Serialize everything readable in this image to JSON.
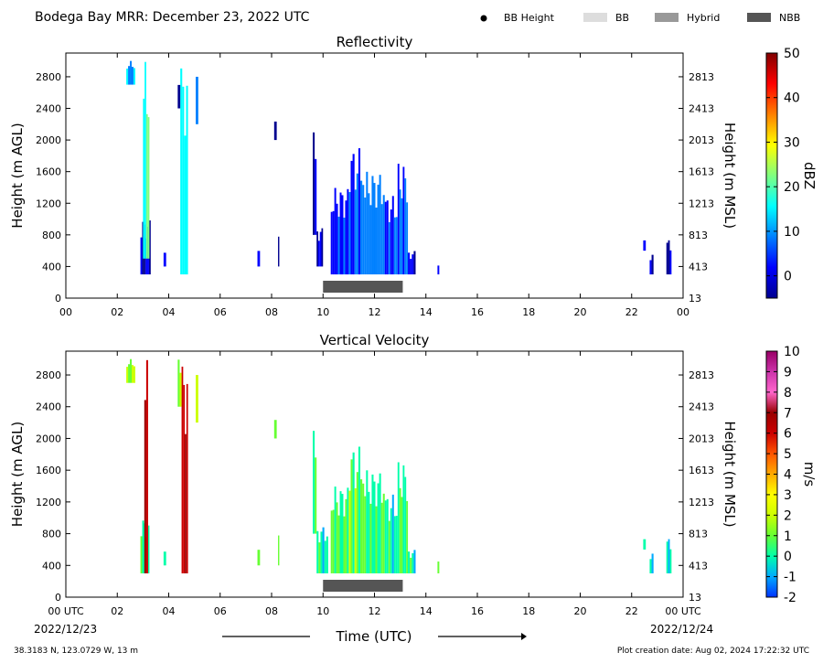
{
  "header": {
    "title": "Bodega Bay MRR:  December 23, 2022 UTC",
    "legend": [
      {
        "label": "BB Height",
        "kind": "dot",
        "color": "#000000"
      },
      {
        "label": "BB",
        "kind": "box",
        "color": "#dddddd"
      },
      {
        "label": "Hybrid",
        "kind": "box",
        "color": "#999999"
      },
      {
        "label": "NBB",
        "kind": "box",
        "color": "#555555"
      }
    ]
  },
  "footer": {
    "location": "38.3183 N, 123.0729 W, 13 m",
    "creation": "Plot creation date: Aug 02, 2024 17:22:32 UTC",
    "xlabel": "Time (UTC)",
    "date_start": "2022/12/23",
    "date_end": "2022/12/24"
  },
  "chart_data": [
    {
      "type": "heatmap",
      "title": "Reflectivity",
      "ylabel": "Height (m AGL)",
      "ylabel_right": "Height (m MSL)",
      "xlim": [
        0,
        24
      ],
      "ylim": [
        0,
        3100
      ],
      "x_ticks": [
        "00",
        "02",
        "04",
        "06",
        "08",
        "10",
        "12",
        "14",
        "16",
        "18",
        "20",
        "22",
        "00"
      ],
      "y_ticks": [
        0,
        400,
        800,
        1200,
        1600,
        2000,
        2400,
        2800
      ],
      "y_ticks_right": [
        13,
        413,
        813,
        1213,
        1613,
        2013,
        2413,
        2813
      ],
      "colorbar": {
        "label": "dBZ",
        "min": -5,
        "max": 50,
        "ticks": [
          0,
          10,
          20,
          30,
          40,
          50
        ],
        "colors": [
          "#00008f",
          "#0000ff",
          "#0080ff",
          "#00ffff",
          "#80ff80",
          "#ffff00",
          "#ff8000",
          "#ff0000",
          "#800000"
        ]
      },
      "nbb_bar": {
        "start": 10.0,
        "end": 13.1,
        "color": "#555555"
      },
      "precip_segments": [
        {
          "t0": 2.35,
          "t1": 2.7,
          "z0": 2700,
          "z1": 3000,
          "v": 12
        },
        {
          "t0": 2.9,
          "t1": 3.3,
          "z0": 300,
          "z1": 1000,
          "v": 2
        },
        {
          "t0": 3.0,
          "t1": 3.25,
          "z0": 500,
          "z1": 3000,
          "v": 18
        },
        {
          "t0": 4.45,
          "t1": 4.75,
          "z0": 300,
          "z1": 3000,
          "v": 16
        },
        {
          "t0": 4.35,
          "t1": 4.45,
          "z0": 2400,
          "z1": 2700,
          "v": 0
        },
        {
          "t0": 5.05,
          "t1": 5.15,
          "z0": 2200,
          "z1": 2900,
          "v": 10
        },
        {
          "t0": 3.8,
          "t1": 3.9,
          "z0": 400,
          "z1": 650,
          "v": 2
        },
        {
          "t0": 7.45,
          "t1": 7.55,
          "z0": 400,
          "z1": 700,
          "v": 0
        },
        {
          "t0": 8.1,
          "t1": 8.2,
          "z0": 2000,
          "z1": 2300,
          "v": 0
        },
        {
          "t0": 8.25,
          "t1": 8.3,
          "z0": 400,
          "z1": 800,
          "v": 0
        },
        {
          "t0": 9.6,
          "t1": 9.75,
          "z0": 800,
          "z1": 2100,
          "v": 0
        },
        {
          "t0": 9.75,
          "t1": 10.0,
          "z0": 400,
          "z1": 900,
          "v": 2
        },
        {
          "t0": 10.3,
          "t1": 11.0,
          "z0": 300,
          "z1": 1400,
          "v": 5
        },
        {
          "t0": 11.0,
          "t1": 11.6,
          "z0": 300,
          "z1": 1900,
          "v": 8
        },
        {
          "t0": 11.6,
          "t1": 12.4,
          "z0": 300,
          "z1": 1600,
          "v": 10
        },
        {
          "t0": 12.4,
          "t1": 12.9,
          "z0": 300,
          "z1": 1300,
          "v": 6
        },
        {
          "t0": 12.9,
          "t1": 13.3,
          "z0": 300,
          "z1": 1700,
          "v": 9
        },
        {
          "t0": 13.3,
          "t1": 13.6,
          "z0": 300,
          "z1": 600,
          "v": 3
        },
        {
          "t0": 14.45,
          "t1": 14.52,
          "z0": 300,
          "z1": 450,
          "v": 2
        },
        {
          "t0": 22.45,
          "t1": 22.55,
          "z0": 600,
          "z1": 800,
          "v": 0
        },
        {
          "t0": 22.7,
          "t1": 22.85,
          "z0": 300,
          "z1": 550,
          "v": 2
        },
        {
          "t0": 23.35,
          "t1": 23.55,
          "z0": 300,
          "z1": 750,
          "v": 1
        }
      ]
    },
    {
      "type": "heatmap",
      "title": "Vertical Velocity",
      "ylabel": "Height (m AGL)",
      "ylabel_right": "Height (m MSL)",
      "xlim": [
        0,
        24
      ],
      "ylim": [
        0,
        3100
      ],
      "x_ticks": [
        "00 UTC",
        "02",
        "04",
        "06",
        "08",
        "10",
        "12",
        "14",
        "16",
        "18",
        "20",
        "22",
        "00 UTC"
      ],
      "y_ticks": [
        0,
        400,
        800,
        1200,
        1600,
        2000,
        2400,
        2800
      ],
      "y_ticks_right": [
        13,
        413,
        813,
        1213,
        1613,
        2013,
        2413,
        2813
      ],
      "colorbar": {
        "label": "m/s",
        "min": -2,
        "max": 10,
        "ticks": [
          -2,
          -1,
          0,
          1,
          2,
          3,
          4,
          5,
          6,
          7,
          8,
          9,
          10
        ],
        "colors": [
          "#0033ff",
          "#00aaff",
          "#00ffaa",
          "#66ff33",
          "#ccff00",
          "#ffff00",
          "#ffaa00",
          "#ff5500",
          "#cc0000",
          "#990000",
          "#ff66cc",
          "#cc33aa",
          "#990066"
        ]
      },
      "nbb_bar": {
        "start": 10.0,
        "end": 13.1,
        "color": "#555555"
      },
      "precip_segments": [
        {
          "t0": 2.35,
          "t1": 2.7,
          "z0": 2700,
          "z1": 3000,
          "v": 1.5
        },
        {
          "t0": 2.9,
          "t1": 3.25,
          "z0": 300,
          "z1": 1000,
          "v": 0.5
        },
        {
          "t0": 3.05,
          "t1": 3.2,
          "z0": 300,
          "z1": 3000,
          "v": 6.5
        },
        {
          "t0": 4.5,
          "t1": 4.75,
          "z0": 300,
          "z1": 3000,
          "v": 6.0
        },
        {
          "t0": 4.35,
          "t1": 4.5,
          "z0": 2400,
          "z1": 3000,
          "v": 2.0
        },
        {
          "t0": 5.05,
          "t1": 5.15,
          "z0": 2200,
          "z1": 2900,
          "v": 2.0
        },
        {
          "t0": 3.8,
          "t1": 3.9,
          "z0": 400,
          "z1": 650,
          "v": 0.2
        },
        {
          "t0": 7.45,
          "t1": 7.55,
          "z0": 400,
          "z1": 700,
          "v": 1.0
        },
        {
          "t0": 8.1,
          "t1": 8.2,
          "z0": 2000,
          "z1": 2300,
          "v": 1.0
        },
        {
          "t0": 8.25,
          "t1": 8.3,
          "z0": 400,
          "z1": 800,
          "v": 1.5
        },
        {
          "t0": 9.6,
          "t1": 9.75,
          "z0": 800,
          "z1": 2100,
          "v": 1.0
        },
        {
          "t0": 9.75,
          "t1": 10.2,
          "z0": 300,
          "z1": 900,
          "v": 0.2
        },
        {
          "t0": 10.3,
          "t1": 11.0,
          "z0": 300,
          "z1": 1400,
          "v": 1.0
        },
        {
          "t0": 11.0,
          "t1": 11.6,
          "z0": 300,
          "z1": 1900,
          "v": 1.2
        },
        {
          "t0": 11.6,
          "t1": 12.4,
          "z0": 300,
          "z1": 1600,
          "v": 0.6
        },
        {
          "t0": 12.4,
          "t1": 12.9,
          "z0": 300,
          "z1": 1300,
          "v": 0.4
        },
        {
          "t0": 12.9,
          "t1": 13.3,
          "z0": 300,
          "z1": 1700,
          "v": 0.8
        },
        {
          "t0": 13.3,
          "t1": 13.6,
          "z0": 300,
          "z1": 600,
          "v": 0.2
        },
        {
          "t0": 14.45,
          "t1": 14.52,
          "z0": 300,
          "z1": 500,
          "v": 0.5
        },
        {
          "t0": 22.45,
          "t1": 22.55,
          "z0": 600,
          "z1": 800,
          "v": 0.1
        },
        {
          "t0": 22.7,
          "t1": 22.85,
          "z0": 300,
          "z1": 550,
          "v": 0.1
        },
        {
          "t0": 23.35,
          "t1": 23.55,
          "z0": 300,
          "z1": 750,
          "v": 0.1
        }
      ]
    }
  ]
}
